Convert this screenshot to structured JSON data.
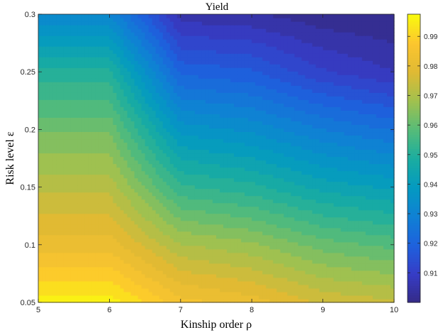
{
  "chart_data": {
    "type": "heatmap",
    "subtype": "filled-contour",
    "title": "Yield",
    "xlabel": "Kinship order ρ",
    "ylabel": "Risk level ε",
    "x": [
      5,
      6,
      7,
      8,
      9,
      10
    ],
    "y": [
      0.05,
      0.1,
      0.15,
      0.2,
      0.25,
      0.3
    ],
    "z": [
      [
        0.996,
        0.996,
        0.985,
        0.982,
        0.976,
        0.974
      ],
      [
        0.982,
        0.982,
        0.97,
        0.967,
        0.961,
        0.958
      ],
      [
        0.972,
        0.972,
        0.953,
        0.95,
        0.944,
        0.941
      ],
      [
        0.962,
        0.962,
        0.937,
        0.934,
        0.928,
        0.924
      ],
      [
        0.95,
        0.95,
        0.92,
        0.918,
        0.911,
        0.907
      ],
      [
        0.931,
        0.931,
        0.905,
        0.904,
        0.901,
        0.9
      ]
    ],
    "xlim": [
      5,
      10
    ],
    "ylim": [
      0.05,
      0.3
    ],
    "xticks": [
      "5",
      "6",
      "7",
      "8",
      "9",
      "10"
    ],
    "yticks": [
      "0.05",
      "0.1",
      "0.15",
      "0.2",
      "0.25",
      "0.3"
    ],
    "colorbar": {
      "range": [
        0.9,
        0.9975
      ],
      "ticks": [
        "0.91",
        "0.92",
        "0.93",
        "0.94",
        "0.95",
        "0.96",
        "0.97",
        "0.98",
        "0.99"
      ],
      "colormap": "parula",
      "placement": "right"
    },
    "levels": 28,
    "grid": false
  }
}
